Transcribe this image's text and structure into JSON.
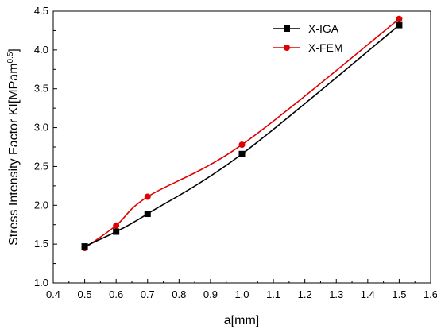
{
  "chart_data": {
    "type": "line",
    "xlabel": "a[mm]",
    "ylabel": {
      "main": "Stress Intensity Factor KI[MPam",
      "sup": "0.5",
      "close": "]"
    },
    "xlim": [
      0.4,
      1.6
    ],
    "ylim": [
      1.0,
      4.5
    ],
    "xticks": [
      "0.4",
      "0.5",
      "0.6",
      "0.7",
      "0.8",
      "0.9",
      "1.0",
      "1.1",
      "1.2",
      "1.3",
      "1.4",
      "1.5",
      "1.6"
    ],
    "yticks": [
      "1.0",
      "1.5",
      "2.0",
      "2.5",
      "3.0",
      "3.5",
      "4.0",
      "4.5"
    ],
    "grid": false,
    "legend_position": "top-right",
    "series": [
      {
        "name": "X-IGA",
        "color": "#000000",
        "marker": "square",
        "x": [
          0.5,
          0.6,
          0.7,
          1.0,
          1.5
        ],
        "y": [
          1.47,
          1.66,
          1.89,
          2.66,
          4.32
        ]
      },
      {
        "name": "X-FEM",
        "color": "#e00000",
        "marker": "circle",
        "x": [
          0.5,
          0.6,
          0.7,
          1.0,
          1.5
        ],
        "y": [
          1.45,
          1.74,
          2.11,
          2.78,
          4.4
        ]
      }
    ]
  }
}
